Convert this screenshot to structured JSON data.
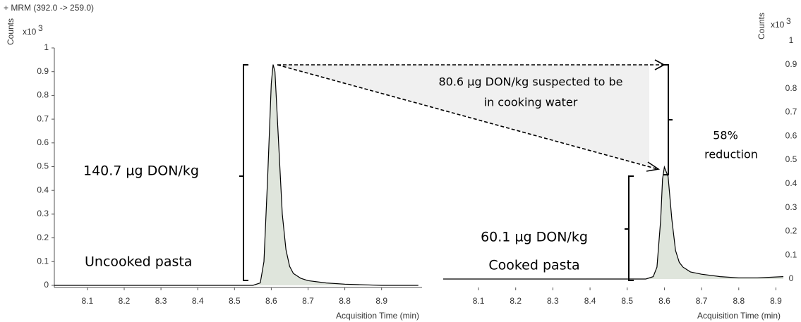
{
  "chart_data": [
    {
      "type": "line",
      "header": "+ MRM (392.0 -> 259.0)",
      "y_label": "Counts",
      "y_multiplier": "x10",
      "y_multiplier_exp": "3",
      "x_label": "Acquisition Time (min)",
      "y_axis_side": "left",
      "x": [
        8.01,
        8.1,
        8.2,
        8.3,
        8.4,
        8.5,
        8.55,
        8.57,
        8.58,
        8.59,
        8.6,
        8.605,
        8.61,
        8.62,
        8.63,
        8.64,
        8.65,
        8.66,
        8.68,
        8.7,
        8.75,
        8.8,
        8.9,
        9.0
      ],
      "series": [
        {
          "name": "Uncooked pasta",
          "color": "#000000",
          "fill": "#dfe5dc",
          "values": [
            0,
            0,
            0,
            0,
            0,
            0,
            0,
            0.01,
            0.1,
            0.45,
            0.85,
            0.93,
            0.9,
            0.6,
            0.3,
            0.15,
            0.08,
            0.05,
            0.03,
            0.02,
            0.01,
            0.005,
            0,
            0
          ]
        }
      ],
      "xlim": [
        8.01,
        9.01
      ],
      "ylim": [
        0,
        1
      ],
      "xticks": [
        8.1,
        8.2,
        8.3,
        8.4,
        8.5,
        8.6,
        8.7,
        8.8,
        8.9
      ],
      "yticks": [
        0,
        0.1,
        0.2,
        0.3,
        0.4,
        0.5,
        0.6,
        0.7,
        0.8,
        0.9,
        1
      ],
      "annotations": [
        "140.7 µg DON/kg",
        "Uncooked pasta"
      ]
    },
    {
      "type": "line",
      "y_label": "Counts",
      "y_multiplier": "x10",
      "y_multiplier_exp": "3",
      "x_label": "Acquisition Time (min)",
      "y_axis_side": "right",
      "x": [
        8.005,
        8.1,
        8.2,
        8.3,
        8.4,
        8.5,
        8.55,
        8.57,
        8.58,
        8.59,
        8.595,
        8.6,
        8.61,
        8.62,
        8.63,
        8.64,
        8.65,
        8.67,
        8.7,
        8.75,
        8.8,
        8.85,
        8.92
      ],
      "series": [
        {
          "name": "Cooked pasta",
          "color": "#000000",
          "fill": "#dfe5dc",
          "values": [
            0,
            0,
            0,
            0,
            0,
            0,
            0,
            0.01,
            0.05,
            0.25,
            0.42,
            0.47,
            0.43,
            0.25,
            0.12,
            0.07,
            0.05,
            0.03,
            0.02,
            0.01,
            0.005,
            0.005,
            0.01
          ]
        }
      ],
      "xlim": [
        8.005,
        8.92
      ],
      "ylim": [
        0,
        1
      ],
      "xticks": [
        8.1,
        8.2,
        8.3,
        8.4,
        8.5,
        8.6,
        8.7,
        8.8,
        8.9
      ],
      "yticks": [
        0,
        0.1,
        0.2,
        0.3,
        0.4,
        0.5,
        0.6,
        0.7,
        0.8,
        0.9,
        1
      ],
      "annotations": [
        "60.1 µg DON/kg",
        "Cooked pasta",
        "58%",
        "reduction",
        "80.6 µg DON/kg suspected to be",
        "in cooking water"
      ]
    }
  ]
}
